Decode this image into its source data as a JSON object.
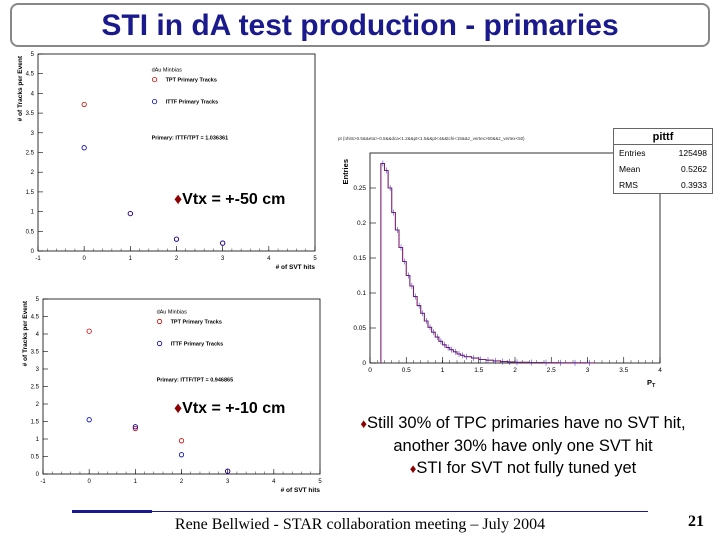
{
  "slide": {
    "title": "STI in dA test production - primaries",
    "footer": "Rene Bellwied - STAR collaboration meeting – July 2004",
    "page_number": "21",
    "bullet_glyph": "♦",
    "notes": [
      "Still 30% of TPC primaries have no SVT hit, another 30% have only one SVT hit",
      "STI for SVT not fully tuned yet"
    ]
  },
  "chart_data": [
    {
      "type": "scatter",
      "annotation": "Vtx = +-50 cm",
      "title": "dAu Minbias",
      "xlabel": "# of SVT hits",
      "ylabel": "# of Tracks per Event",
      "xlim": [
        -1,
        5
      ],
      "ylim": [
        0,
        5
      ],
      "xticks": [
        "-1",
        "0",
        "1",
        "2",
        "3",
        "4",
        "5"
      ],
      "yticks": [
        "0",
        "0.5",
        "1",
        "1.5",
        "2",
        "2.5",
        "3",
        "3.5",
        "4",
        "4.5",
        "5"
      ],
      "ratio_text": "Primary: ITTF/TPT = 1.036361",
      "series": [
        {
          "name": "TPT Primary Tracks",
          "color": "#cc0000",
          "x": [
            0,
            1,
            2,
            3
          ],
          "y": [
            3.72,
            0.95,
            0.3,
            0.2
          ]
        },
        {
          "name": "ITTF Primary Tracks",
          "color": "#0000aa",
          "x": [
            0,
            1,
            2,
            3
          ],
          "y": [
            2.62,
            0.95,
            0.3,
            0.2
          ]
        }
      ]
    },
    {
      "type": "scatter",
      "annotation": "Vtx = +-10 cm",
      "title": "dAu Minbias",
      "xlabel": "# of SVT hits",
      "ylabel": "# of Tracks per Event",
      "xlim": [
        -1,
        5
      ],
      "ylim": [
        0,
        5
      ],
      "xticks": [
        "-1",
        "0",
        "1",
        "2",
        "3",
        "4",
        "5"
      ],
      "yticks": [
        "0",
        "0.5",
        "1",
        "1.5",
        "2",
        "2.5",
        "3",
        "3.5",
        "4",
        "4.5",
        "5"
      ],
      "ratio_text": "Primary: ITTF/TPT = 0.946865",
      "series": [
        {
          "name": "TPT Primary Tracks",
          "color": "#cc0000",
          "x": [
            0,
            1,
            2,
            3
          ],
          "y": [
            4.08,
            1.3,
            0.95,
            0.08
          ]
        },
        {
          "name": "ITTF Primary Tracks",
          "color": "#0000aa",
          "x": [
            0,
            1,
            2,
            3
          ],
          "y": [
            1.55,
            1.35,
            0.55,
            0.08
          ]
        }
      ]
    },
    {
      "type": "bar",
      "title": "pittf",
      "cut_text": "pt {nhits>0.5&&eta>-0.5&&dca<1.2&&pt<1.5&&pt<4&&tchi<15&&z_vertex>50&&z_vertex<50}",
      "xlabel": "P_T",
      "ylabel": "Entries",
      "xlim": [
        0,
        4
      ],
      "ylim": [
        0,
        0.3
      ],
      "xticks": [
        "0",
        "0.5",
        "1",
        "1.5",
        "2",
        "2.5",
        "3",
        "3.5",
        "4"
      ],
      "yticks": [
        "0",
        "0.05",
        "0.1",
        "0.15",
        "0.2",
        "0.25"
      ],
      "stats": {
        "Entries": "125498",
        "Mean": "0.5262",
        "RMS": "0.3933"
      },
      "series": [
        {
          "color": "#7a1f6e",
          "x": [
            0.15,
            0.2,
            0.25,
            0.3,
            0.35,
            0.4,
            0.45,
            0.5,
            0.55,
            0.6,
            0.65,
            0.7,
            0.75,
            0.8,
            0.85,
            0.9,
            0.95,
            1.0,
            1.05,
            1.1,
            1.15,
            1.2,
            1.25,
            1.3,
            1.4,
            1.5,
            1.6,
            1.7,
            1.8,
            1.9,
            2.0,
            2.2,
            2.4,
            2.6,
            2.8,
            3.0
          ],
          "y": [
            0.285,
            0.275,
            0.25,
            0.215,
            0.19,
            0.165,
            0.145,
            0.125,
            0.11,
            0.095,
            0.082,
            0.071,
            0.06,
            0.051,
            0.044,
            0.037,
            0.031,
            0.026,
            0.022,
            0.019,
            0.016,
            0.013,
            0.011,
            0.009,
            0.007,
            0.005,
            0.004,
            0.003,
            0.002,
            0.0015,
            0.001,
            0.0007,
            0.0004,
            0.0003,
            0.0002,
            0.0001
          ]
        }
      ]
    }
  ]
}
